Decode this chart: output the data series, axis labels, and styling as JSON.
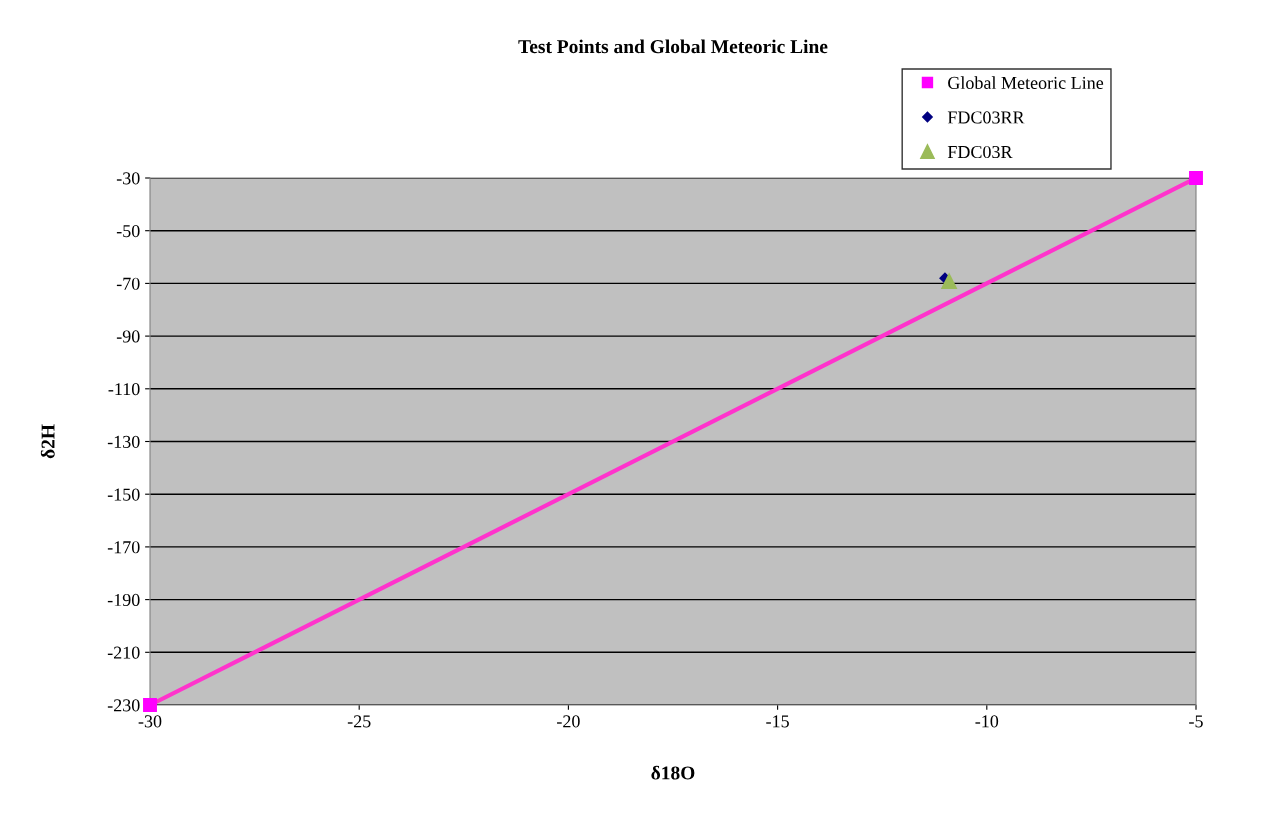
{
  "chart_data": {
    "type": "scatter",
    "title": "Test Points and Global Meteoric Line",
    "xlabel": "δ18O",
    "ylabel": "δ2H",
    "xlim": [
      -30,
      -5
    ],
    "xticks": [
      -30,
      -25,
      -20,
      -15,
      -10,
      -5
    ],
    "ylim": [
      -230,
      -30
    ],
    "yticks": [
      -230,
      -210,
      -190,
      -170,
      -150,
      -130,
      -110,
      -90,
      -70,
      -50,
      -30
    ],
    "grid": "y",
    "legend": "top right",
    "series": [
      {
        "name": "Global Meteoric Line",
        "type": "line",
        "color": "#ff33cc",
        "marker": "square",
        "x": [
          -30,
          -5
        ],
        "values": [
          -230,
          -30
        ]
      },
      {
        "name": "FDC03RR",
        "color": "#000080",
        "marker": "diamond",
        "x": [
          -11.0
        ],
        "values": [
          -68
        ]
      },
      {
        "name": "FDC03R",
        "color": "#9bbb59",
        "marker": "triangle",
        "x": [
          -10.9
        ],
        "values": [
          -69
        ]
      }
    ]
  }
}
